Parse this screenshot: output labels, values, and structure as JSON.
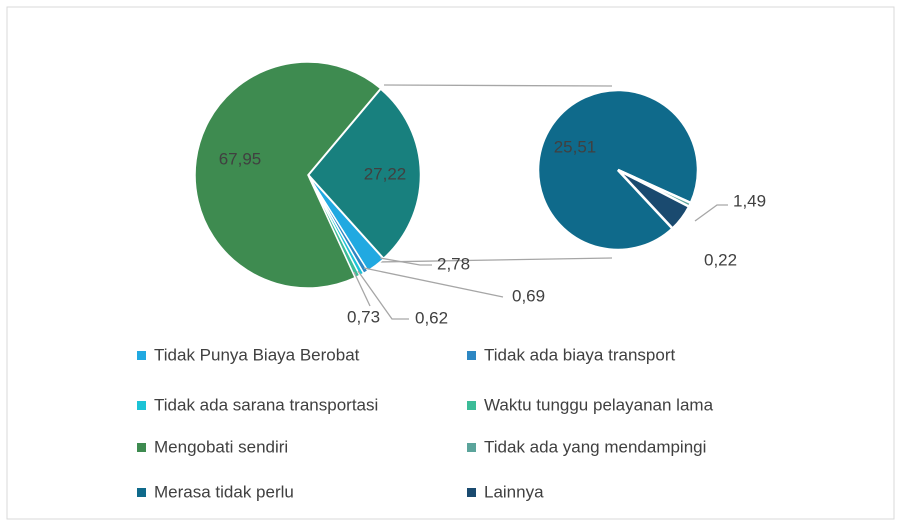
{
  "chart_data": {
    "type": "pie-of-pie",
    "categories": [
      "Tidak Punya Biaya Berobat",
      "Tidak ada biaya transport",
      "Tidak ada sarana transportasi",
      "Waktu tunggu pelayanan lama",
      "Mengobati sendiri",
      "Tidak ada yang mendampingi",
      "Merasa tidak perlu",
      "Lainnya"
    ],
    "values": [
      2.78,
      0.69,
      0.62,
      0.73,
      67.95,
      0.22,
      25.51,
      1.49
    ],
    "value_labels": [
      "2,78",
      "0,69",
      "0,62",
      "0,73",
      "67,95",
      "0,22",
      "25,51",
      "1,49"
    ],
    "colors": [
      "#21a9e1",
      "#2d87c3",
      "#1cc3d6",
      "#3cbc98",
      "#3e8b50",
      "#5ba49b",
      "#0f6a8b",
      "#1a4a6f"
    ],
    "in_secondary": [
      false,
      false,
      false,
      false,
      false,
      true,
      true,
      true
    ],
    "secondary_total": 27.22,
    "secondary_total_label": "27,22",
    "secondary_color": "#18807e"
  }
}
